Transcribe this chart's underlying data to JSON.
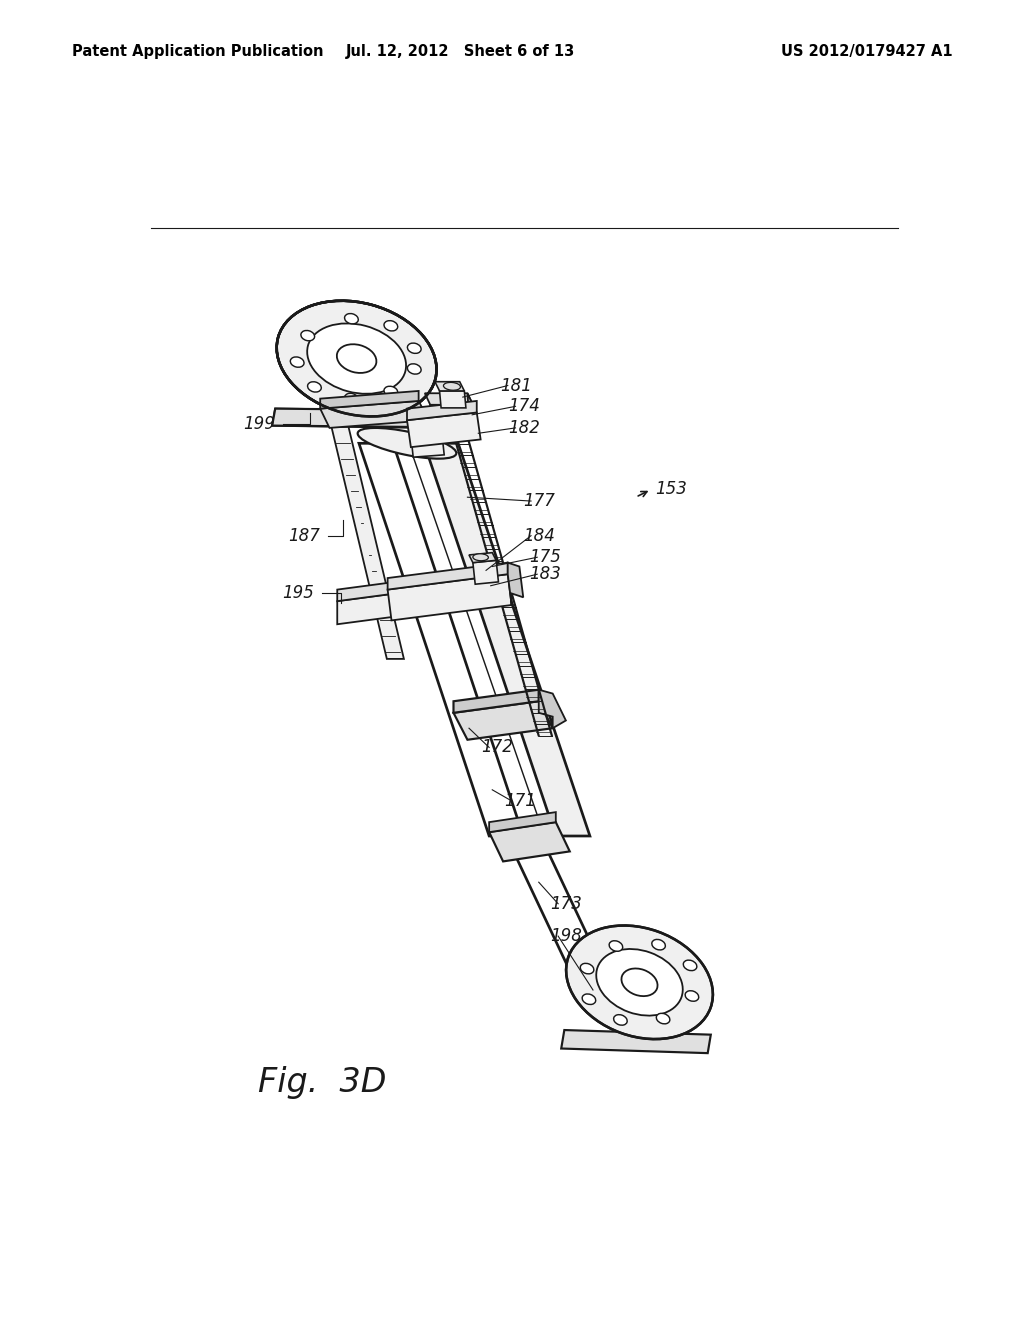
{
  "background_color": "#ffffff",
  "header_left": "Patent Application Publication",
  "header_center": "Jul. 12, 2012   Sheet 6 of 13",
  "header_right": "US 2012/0179427 A1",
  "header_fontsize": 10.5,
  "fig_label": "Fig.  3D",
  "fig_label_fontsize": 24,
  "label_fontsize": 12,
  "lw": 1.3,
  "line_color": "#1a1a1a",
  "face_white": "#ffffff",
  "face_light": "#f0f0f0",
  "face_mid": "#e0e0e0",
  "face_dark": "#cccccc"
}
